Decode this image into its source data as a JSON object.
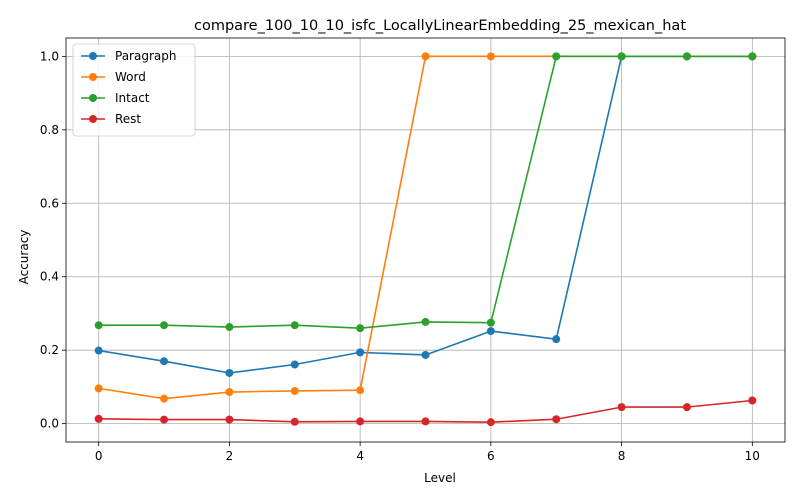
{
  "chart_data": {
    "type": "line",
    "title": "compare_100_10_10_isfc_LocallyLinearEmbedding_25_mexican_hat",
    "xlabel": "Level",
    "ylabel": "Accuracy",
    "xlim": [
      -0.5,
      10.5
    ],
    "ylim": [
      -0.05,
      1.05
    ],
    "xticks": [
      0,
      2,
      4,
      6,
      8,
      10
    ],
    "yticks": [
      0.0,
      0.2,
      0.4,
      0.6,
      0.8,
      1.0
    ],
    "xtick_labels": [
      "0",
      "2",
      "4",
      "6",
      "8",
      "10"
    ],
    "ytick_labels": [
      "0.0",
      "0.2",
      "0.4",
      "0.6",
      "0.8",
      "1.0"
    ],
    "grid": true,
    "legend_position": "top-left",
    "x": [
      0,
      1,
      2,
      3,
      4,
      5,
      6,
      7,
      8,
      9,
      10
    ],
    "series": [
      {
        "name": "Paragraph",
        "color": "#1f77b4",
        "values": [
          0.199,
          0.17,
          0.138,
          0.161,
          0.194,
          0.187,
          0.252,
          0.23,
          1.0,
          1.0,
          1.0
        ]
      },
      {
        "name": "Word",
        "color": "#ff7f0e",
        "values": [
          0.096,
          0.068,
          0.086,
          0.089,
          0.091,
          1.0,
          1.0,
          1.0,
          1.0,
          1.0,
          1.0
        ]
      },
      {
        "name": "Intact",
        "color": "#2ca02c",
        "values": [
          0.268,
          0.268,
          0.263,
          0.268,
          0.26,
          0.277,
          0.275,
          1.0,
          1.0,
          1.0,
          1.0
        ]
      },
      {
        "name": "Rest",
        "color": "#d62728",
        "values": [
          0.013,
          0.011,
          0.011,
          0.005,
          0.006,
          0.006,
          0.004,
          0.012,
          0.045,
          0.045,
          0.063
        ]
      }
    ]
  }
}
